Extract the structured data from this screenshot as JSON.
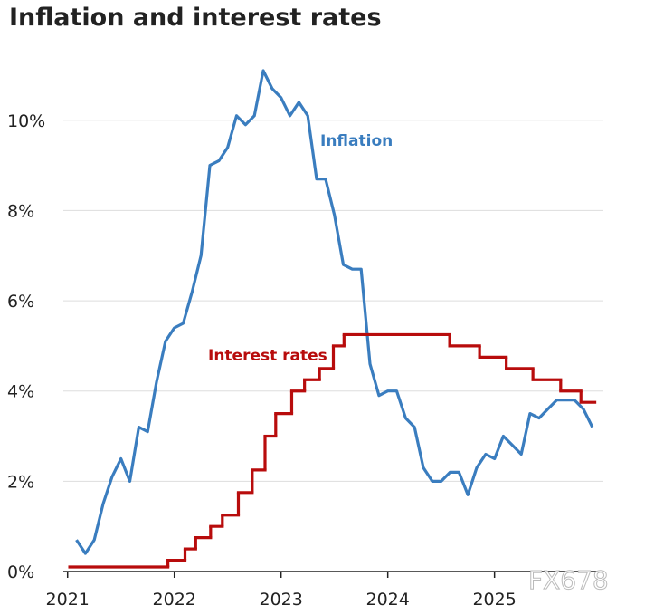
{
  "chart_data": {
    "type": "line",
    "title": "Inflation and interest rates",
    "xlim": [
      2020.96,
      2026.02
    ],
    "xticks": [
      2021,
      2022,
      2023,
      2024,
      2025
    ],
    "ylim": [
      0,
      11.2
    ],
    "yticks": [
      {
        "value": 0,
        "label": "0%"
      },
      {
        "value": 2,
        "label": "2%"
      },
      {
        "value": 4,
        "label": "4%"
      },
      {
        "value": 6,
        "label": "6%"
      },
      {
        "value": 8,
        "label": "8%"
      },
      {
        "value": 10,
        "label": "10%"
      }
    ],
    "grid": true,
    "watermark": "FX678",
    "series": [
      {
        "name": "Inflation",
        "color": "#3a7dbf",
        "x": [
          2021.083,
          2021.167,
          2021.25,
          2021.333,
          2021.417,
          2021.5,
          2021.583,
          2021.667,
          2021.75,
          2021.833,
          2021.917,
          2022,
          2022.083,
          2022.167,
          2022.25,
          2022.333,
          2022.417,
          2022.5,
          2022.583,
          2022.667,
          2022.75,
          2022.833,
          2022.917,
          2023,
          2023.083,
          2023.167,
          2023.25,
          2023.333,
          2023.417,
          2023.5,
          2023.583,
          2023.667,
          2023.75,
          2023.833,
          2023.917,
          2024,
          2024.083,
          2024.167,
          2024.25,
          2024.333,
          2024.417,
          2024.5,
          2024.583,
          2024.667,
          2024.75,
          2024.833,
          2024.917,
          2025,
          2025.083,
          2025.167,
          2025.25,
          2025.333,
          2025.417,
          2025.5,
          2025.583,
          2025.667,
          2025.75,
          2025.833,
          2025.917
        ],
        "values": [
          0.7,
          0.4,
          0.7,
          1.5,
          2.1,
          2.5,
          2.0,
          3.2,
          3.1,
          4.2,
          5.1,
          5.4,
          5.5,
          6.2,
          7.0,
          9.0,
          9.1,
          9.4,
          10.1,
          9.9,
          10.1,
          11.1,
          10.7,
          10.5,
          10.1,
          10.4,
          10.1,
          8.7,
          8.7,
          7.9,
          6.8,
          6.7,
          6.7,
          4.6,
          3.9,
          4.0,
          4.0,
          3.4,
          3.2,
          2.3,
          2.0,
          2.0,
          2.2,
          2.2,
          1.7,
          2.3,
          2.6,
          2.5,
          3.0,
          2.8,
          2.6,
          3.5,
          3.4,
          3.6,
          3.8,
          3.8,
          3.8,
          3.6,
          3.2
        ]
      },
      {
        "name": "Interest rates",
        "color": "#b80c0c",
        "step": true,
        "x": [
          2021.02,
          2021.94,
          2022.1,
          2022.2,
          2022.34,
          2022.45,
          2022.6,
          2022.73,
          2022.85,
          2022.95,
          2023.1,
          2023.22,
          2023.36,
          2023.49,
          2023.59,
          2024.58,
          2024.86,
          2025.11,
          2025.36,
          2025.62,
          2025.81,
          2025.94
        ],
        "values": [
          0.1,
          0.25,
          0.5,
          0.75,
          1.0,
          1.25,
          1.75,
          2.25,
          3.0,
          3.5,
          4.0,
          4.25,
          4.5,
          5.0,
          5.25,
          5.0,
          4.75,
          4.5,
          4.25,
          4.0,
          3.75,
          3.75
        ]
      }
    ]
  }
}
